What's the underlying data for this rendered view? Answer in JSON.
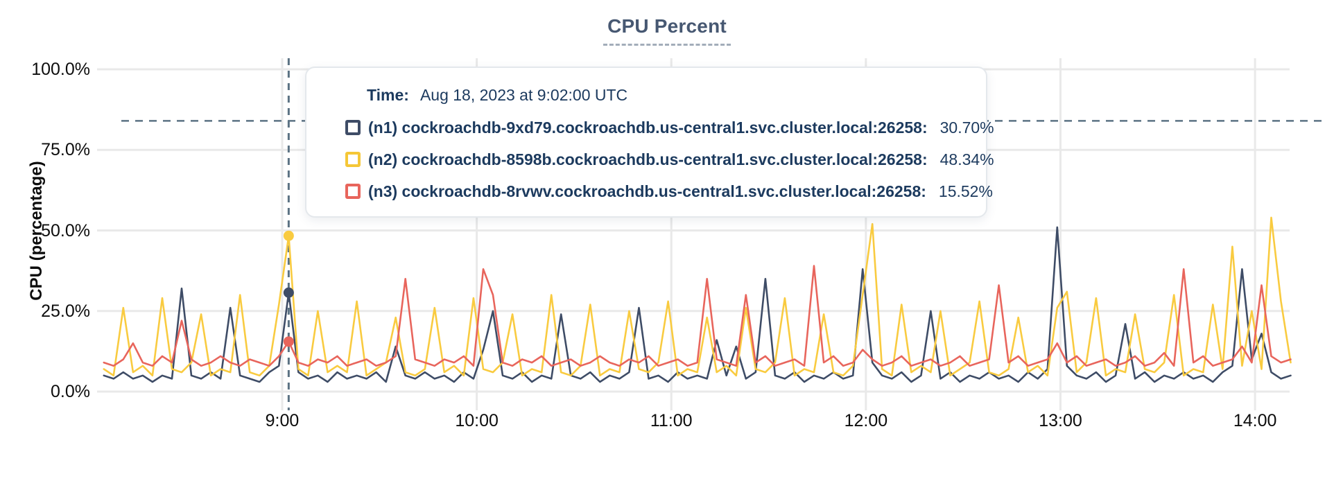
{
  "accent_colors": {
    "title": "#475872",
    "grid": "#e9e9e9",
    "dashed_guides": "#5b7283",
    "tooltip_text": "#1c3a5e"
  },
  "tooltip": {
    "time_label": "Time:",
    "time_value": "Aug 18, 2023 at 9:02:00 UTC",
    "rows": [
      {
        "name": "(n1) cockroachdb-9xd79.cockroachdb.us-central1.svc.cluster.local:26258:",
        "value": "30.70%",
        "color": "#3e4c66"
      },
      {
        "name": "(n2) cockroachdb-8598b.cockroachdb.us-central1.svc.cluster.local:26258:",
        "value": "48.34%",
        "color": "#f5c737"
      },
      {
        "name": "(n3) cockroachdb-8rvwv.cockroachdb.us-central1.svc.cluster.local:26258:",
        "value": "15.52%",
        "color": "#e8655c"
      }
    ]
  },
  "chart_data": {
    "type": "line",
    "title": "CPU Percent",
    "xlabel": "",
    "ylabel": "CPU (percentage)",
    "ylim": [
      0,
      100
    ],
    "grid": true,
    "y_ticks": [
      {
        "label": "0.0%",
        "value": 0
      },
      {
        "label": "25.0%",
        "value": 25
      },
      {
        "label": "50.0%",
        "value": 50
      },
      {
        "label": "75.0%",
        "value": 75
      },
      {
        "label": "100.0%",
        "value": 100
      }
    ],
    "x_ticks": [
      {
        "label": "9:00",
        "min": 540
      },
      {
        "label": "10:00",
        "min": 600
      },
      {
        "label": "11:00",
        "min": 660
      },
      {
        "label": "12:00",
        "min": 720
      },
      {
        "label": "13:00",
        "min": 780
      },
      {
        "label": "14:00",
        "min": 840
      }
    ],
    "x_start_min": 485,
    "x_step_min": 3,
    "threshold_line_pct": 84,
    "hover": {
      "min": 542,
      "time": "Aug 18, 2023 at 9:02:00 UTC",
      "values": {
        "n1": 30.7,
        "n2": 48.34,
        "n3": 15.52
      }
    },
    "series": [
      {
        "id": "n1",
        "name": "(n1) cockroachdb-9xd79.cockroachdb.us-central1.svc.cluster.local:26258",
        "color": "#3e4c66",
        "values": [
          5,
          4,
          6,
          4,
          5,
          3,
          5,
          4,
          32,
          5,
          4,
          6,
          4,
          26,
          5,
          4,
          3,
          6,
          8,
          30.7,
          6,
          4,
          5,
          3,
          6,
          4,
          5,
          4,
          6,
          3,
          14,
          5,
          4,
          6,
          4,
          5,
          3,
          6,
          4,
          13,
          25,
          5,
          4,
          6,
          3,
          5,
          4,
          24,
          5,
          4,
          6,
          3,
          5,
          4,
          6,
          26,
          4,
          5,
          3,
          6,
          4,
          5,
          4,
          16,
          5,
          14,
          4,
          6,
          35,
          5,
          4,
          6,
          3,
          5,
          4,
          6,
          4,
          5,
          38,
          9,
          5,
          4,
          6,
          3,
          5,
          25,
          4,
          6,
          3,
          5,
          4,
          6,
          4,
          5,
          3,
          6,
          4,
          7,
          51,
          8,
          5,
          4,
          6,
          3,
          5,
          21,
          4,
          6,
          3,
          5,
          4,
          6,
          4,
          5,
          3,
          6,
          8,
          38,
          10,
          18,
          6,
          4,
          5
        ]
      },
      {
        "id": "n2",
        "name": "(n2) cockroachdb-8598b.cockroachdb.us-central1.svc.cluster.local:26258",
        "color": "#f9cb40",
        "values": [
          7,
          5,
          26,
          6,
          8,
          5,
          29,
          7,
          6,
          9,
          24,
          5,
          7,
          6,
          30,
          6,
          5,
          8,
          27,
          48.34,
          7,
          5,
          25,
          6,
          8,
          6,
          28,
          5,
          7,
          9,
          23,
          6,
          5,
          7,
          26,
          6,
          8,
          5,
          29,
          7,
          6,
          9,
          24,
          5,
          7,
          6,
          30,
          6,
          5,
          8,
          27,
          5,
          7,
          6,
          25,
          7,
          6,
          9,
          28,
          5,
          7,
          6,
          23,
          6,
          8,
          5,
          26,
          7,
          6,
          9,
          29,
          5,
          7,
          6,
          24,
          6,
          5,
          8,
          30,
          52,
          7,
          5,
          27,
          6,
          8,
          6,
          25,
          5,
          7,
          9,
          28,
          6,
          5,
          7,
          23,
          6,
          8,
          5,
          26,
          31,
          6,
          9,
          29,
          5,
          7,
          6,
          24,
          7,
          6,
          9,
          30,
          5,
          7,
          6,
          27,
          7,
          45,
          8,
          25,
          7,
          54,
          28,
          9
        ]
      },
      {
        "id": "n3",
        "name": "(n3) cockroachdb-8rvwv.cockroachdb.us-central1.svc.cluster.local:26258",
        "color": "#e8655c",
        "values": [
          9,
          8,
          10,
          15,
          9,
          8,
          11,
          9,
          22,
          10,
          8,
          9,
          11,
          9,
          8,
          10,
          9,
          8,
          11,
          15.52,
          9,
          8,
          10,
          9,
          11,
          8,
          9,
          10,
          8,
          9,
          11,
          35,
          10,
          9,
          8,
          10,
          9,
          11,
          8,
          38,
          30,
          9,
          8,
          10,
          9,
          11,
          8,
          9,
          10,
          8,
          9,
          11,
          9,
          8,
          10,
          9,
          11,
          8,
          9,
          10,
          8,
          9,
          35,
          10,
          9,
          8,
          30,
          9,
          11,
          8,
          9,
          10,
          8,
          39,
          9,
          11,
          8,
          9,
          13,
          10,
          8,
          9,
          11,
          8,
          9,
          10,
          8,
          9,
          11,
          8,
          9,
          10,
          33,
          9,
          11,
          8,
          9,
          10,
          15,
          9,
          11,
          8,
          9,
          10,
          8,
          9,
          11,
          8,
          9,
          12,
          8,
          38,
          9,
          11,
          8,
          9,
          10,
          14,
          9,
          33,
          11,
          9,
          10
        ]
      }
    ]
  }
}
